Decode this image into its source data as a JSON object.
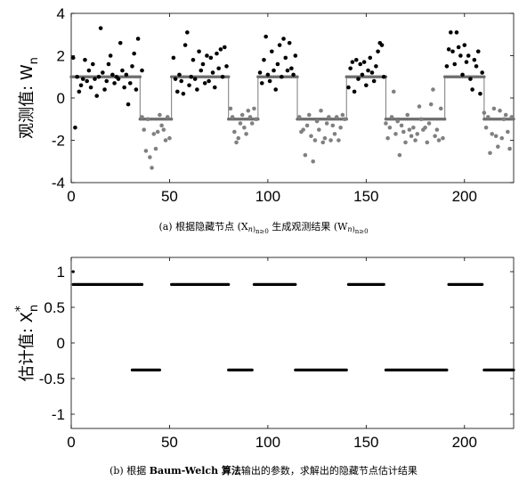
{
  "chart_data": [
    {
      "type": "scatter",
      "xlim": [
        0,
        225
      ],
      "ylim": [
        -4,
        4
      ],
      "xticks": [
        "0",
        "50",
        "100",
        "150",
        "200"
      ],
      "yticks": [
        "4",
        "2",
        "0",
        "-2",
        "-4"
      ],
      "xtick_values": [
        0,
        50,
        100,
        150,
        200
      ],
      "ytick_values": [
        4,
        2,
        0,
        -2,
        -4
      ],
      "ylabel": "观测值: W",
      "ylabel_sub": "n",
      "caption": "(a) 根据隐藏节点 (X_n)_{n≥0} 生成观测结果 (W_n)_{n≥0}",
      "hidden_state_segments": [
        {
          "x_start": 0,
          "x_end": 35,
          "level": 1
        },
        {
          "x_start": 35,
          "x_end": 51,
          "level": -1
        },
        {
          "x_start": 51,
          "x_end": 80,
          "level": 1
        },
        {
          "x_start": 80,
          "x_end": 95,
          "level": -1
        },
        {
          "x_start": 95,
          "x_end": 115,
          "level": 1
        },
        {
          "x_start": 115,
          "x_end": 140,
          "level": -1
        },
        {
          "x_start": 140,
          "x_end": 160,
          "level": 1
        },
        {
          "x_start": 160,
          "x_end": 190,
          "level": -1
        },
        {
          "x_start": 190,
          "x_end": 210,
          "level": 1
        },
        {
          "x_start": 210,
          "x_end": 225,
          "level": -1
        }
      ],
      "series": [
        {
          "color": "#000000",
          "points": [
            [
              1,
              1.9
            ],
            [
              2,
              -1.4
            ],
            [
              3,
              1.0
            ],
            [
              4,
              0.3
            ],
            [
              5,
              0.6
            ],
            [
              6,
              0.9
            ],
            [
              7,
              1.8
            ],
            [
              8,
              0.8
            ],
            [
              9,
              1.3
            ],
            [
              10,
              0.5
            ],
            [
              11,
              1.6
            ],
            [
              12,
              0.9
            ],
            [
              13,
              0.1
            ],
            [
              14,
              1.0
            ],
            [
              15,
              3.3
            ],
            [
              16,
              1.2
            ],
            [
              17,
              0.4
            ],
            [
              18,
              0.8
            ],
            [
              19,
              1.6
            ],
            [
              20,
              2.0
            ],
            [
              21,
              1.1
            ],
            [
              22,
              0.7
            ],
            [
              23,
              1.0
            ],
            [
              24,
              0.9
            ],
            [
              25,
              2.6
            ],
            [
              26,
              1.3
            ],
            [
              27,
              0.5
            ],
            [
              28,
              1.1
            ],
            [
              29,
              -0.3
            ],
            [
              30,
              0.7
            ],
            [
              31,
              1.5
            ],
            [
              32,
              2.1
            ],
            [
              33,
              0.4
            ],
            [
              34,
              2.8
            ],
            [
              36,
              1.3
            ],
            [
              52,
              1.9
            ],
            [
              53,
              0.9
            ],
            [
              54,
              0.3
            ],
            [
              55,
              1.1
            ],
            [
              56,
              0.8
            ],
            [
              57,
              0.2
            ],
            [
              58,
              2.5
            ],
            [
              59,
              3.1
            ],
            [
              60,
              0.6
            ],
            [
              61,
              1.0
            ],
            [
              62,
              1.8
            ],
            [
              63,
              0.9
            ],
            [
              64,
              0.4
            ],
            [
              65,
              2.2
            ],
            [
              66,
              1.3
            ],
            [
              67,
              1.6
            ],
            [
              68,
              0.7
            ],
            [
              69,
              2.0
            ],
            [
              70,
              0.8
            ],
            [
              71,
              1.9
            ],
            [
              72,
              1.2
            ],
            [
              73,
              0.5
            ],
            [
              74,
              2.1
            ],
            [
              75,
              1.4
            ],
            [
              76,
              2.3
            ],
            [
              77,
              1.0
            ],
            [
              78,
              2.4
            ],
            [
              79,
              1.5
            ],
            [
              96,
              1.2
            ],
            [
              97,
              0.7
            ],
            [
              98,
              1.8
            ],
            [
              99,
              2.9
            ],
            [
              100,
              1.1
            ],
            [
              101,
              0.8
            ],
            [
              102,
              2.2
            ],
            [
              103,
              1.3
            ],
            [
              104,
              0.4
            ],
            [
              105,
              1.6
            ],
            [
              106,
              2.5
            ],
            [
              107,
              1.0
            ],
            [
              108,
              2.8
            ],
            [
              109,
              1.9
            ],
            [
              110,
              1.3
            ],
            [
              111,
              2.6
            ],
            [
              112,
              1.4
            ],
            [
              113,
              1.1
            ],
            [
              114,
              2.0
            ],
            [
              141,
              0.5
            ],
            [
              142,
              1.4
            ],
            [
              143,
              1.7
            ],
            [
              144,
              0.3
            ],
            [
              145,
              1.8
            ],
            [
              146,
              0.9
            ],
            [
              147,
              1.6
            ],
            [
              148,
              1.1
            ],
            [
              149,
              1.7
            ],
            [
              150,
              0.6
            ],
            [
              151,
              1.3
            ],
            [
              152,
              1.9
            ],
            [
              153,
              1.2
            ],
            [
              154,
              0.8
            ],
            [
              155,
              1.5
            ],
            [
              156,
              2.2
            ],
            [
              157,
              2.6
            ],
            [
              158,
              2.5
            ],
            [
              159,
              1.0
            ],
            [
              191,
              1.5
            ],
            [
              192,
              2.3
            ],
            [
              193,
              3.1
            ],
            [
              194,
              2.2
            ],
            [
              195,
              1.6
            ],
            [
              196,
              3.1
            ],
            [
              197,
              2.4
            ],
            [
              198,
              2.0
            ],
            [
              199,
              1.1
            ],
            [
              200,
              2.5
            ],
            [
              201,
              1.7
            ],
            [
              202,
              2.0
            ],
            [
              203,
              0.9
            ],
            [
              204,
              0.4
            ],
            [
              205,
              1.8
            ],
            [
              206,
              1.5
            ],
            [
              207,
              2.2
            ],
            [
              208,
              0.2
            ],
            [
              209,
              1.2
            ]
          ]
        },
        {
          "color": "#808080",
          "points": [
            [
              36,
              -0.9
            ],
            [
              37,
              -1.5
            ],
            [
              38,
              -2.5
            ],
            [
              39,
              -1.0
            ],
            [
              40,
              -2.8
            ],
            [
              41,
              -3.3
            ],
            [
              42,
              -1.7
            ],
            [
              43,
              -2.4
            ],
            [
              44,
              -1.6
            ],
            [
              45,
              -0.8
            ],
            [
              46,
              -1.3
            ],
            [
              47,
              -1.5
            ],
            [
              48,
              -2.0
            ],
            [
              49,
              -0.9
            ],
            [
              50,
              -1.9
            ],
            [
              81,
              -0.5
            ],
            [
              82,
              -0.9
            ],
            [
              83,
              -1.6
            ],
            [
              84,
              -2.1
            ],
            [
              85,
              -1.9
            ],
            [
              86,
              -1.2
            ],
            [
              87,
              -0.8
            ],
            [
              88,
              -1.4
            ],
            [
              89,
              -1.7
            ],
            [
              90,
              -0.6
            ],
            [
              91,
              -0.9
            ],
            [
              92,
              -1.2
            ],
            [
              93,
              -0.5
            ],
            [
              94,
              -1.0
            ],
            [
              116,
              -0.9
            ],
            [
              117,
              -1.6
            ],
            [
              118,
              -1.5
            ],
            [
              119,
              -2.7
            ],
            [
              120,
              -1.3
            ],
            [
              121,
              -0.8
            ],
            [
              122,
              -1.8
            ],
            [
              123,
              -3.0
            ],
            [
              124,
              -2.0
            ],
            [
              125,
              -1.1
            ],
            [
              126,
              -1.5
            ],
            [
              127,
              -0.6
            ],
            [
              128,
              -2.1
            ],
            [
              129,
              -1.9
            ],
            [
              130,
              -1.2
            ],
            [
              131,
              -0.9
            ],
            [
              132,
              -2.0
            ],
            [
              133,
              -1.3
            ],
            [
              134,
              -1.7
            ],
            [
              135,
              -0.9
            ],
            [
              136,
              -2.0
            ],
            [
              137,
              -1.4
            ],
            [
              138,
              -0.8
            ],
            [
              139,
              -1.0
            ],
            [
              160,
              -1.2
            ],
            [
              161,
              -1.9
            ],
            [
              162,
              -1.4
            ],
            [
              163,
              -0.9
            ],
            [
              164,
              0.3
            ],
            [
              165,
              -1.7
            ],
            [
              166,
              -1.1
            ],
            [
              167,
              -2.7
            ],
            [
              168,
              -1.3
            ],
            [
              169,
              -1.6
            ],
            [
              170,
              -2.1
            ],
            [
              171,
              -0.8
            ],
            [
              172,
              -1.5
            ],
            [
              173,
              -1.8
            ],
            [
              174,
              -1.4
            ],
            [
              175,
              -2.0
            ],
            [
              176,
              -1.7
            ],
            [
              177,
              -0.4
            ],
            [
              178,
              -1.0
            ],
            [
              179,
              -1.5
            ],
            [
              180,
              -1.4
            ],
            [
              181,
              -2.1
            ],
            [
              182,
              -1.2
            ],
            [
              183,
              -0.3
            ],
            [
              184,
              0.4
            ],
            [
              185,
              -1.8
            ],
            [
              186,
              -1.5
            ],
            [
              187,
              -2.0
            ],
            [
              188,
              -0.5
            ],
            [
              189,
              -1.9
            ],
            [
              210,
              -0.7
            ],
            [
              211,
              -1.4
            ],
            [
              212,
              -0.9
            ],
            [
              213,
              -2.6
            ],
            [
              214,
              -1.7
            ],
            [
              215,
              -0.5
            ],
            [
              216,
              -1.8
            ],
            [
              217,
              -2.3
            ],
            [
              218,
              -0.6
            ],
            [
              219,
              -1.9
            ],
            [
              220,
              -1.0
            ],
            [
              221,
              -0.8
            ],
            [
              222,
              -1.6
            ],
            [
              223,
              -2.4
            ],
            [
              224,
              -0.9
            ]
          ]
        }
      ]
    },
    {
      "type": "scatter",
      "xlim": [
        0,
        225
      ],
      "ylim": [
        -1.2,
        1.2
      ],
      "xticks": [
        "0",
        "50",
        "100",
        "150",
        "200"
      ],
      "yticks": [
        "1",
        "0.5",
        "0",
        "-0.5",
        "-1"
      ],
      "xtick_values": [
        0,
        50,
        100,
        150,
        200
      ],
      "ytick_values": [
        1,
        0.5,
        0,
        -0.5,
        -1
      ],
      "ylabel": "估计值: X",
      "ylabel_sup": "*",
      "ylabel_sub": "n",
      "caption": "(b) 根据 Baum-Welch 算法输出的参数，求解出的隐藏节点估计结果",
      "caption_bold": "Baum-Welch 算法",
      "estimate_segments": [
        {
          "x_start": 1,
          "x_end": 36,
          "level": 0.82
        },
        {
          "x_start": 31,
          "x_end": 45,
          "level": -0.38
        },
        {
          "x_start": 51,
          "x_end": 80,
          "level": 0.82
        },
        {
          "x_start": 80,
          "x_end": 92,
          "level": -0.38
        },
        {
          "x_start": 93,
          "x_end": 114,
          "level": 0.82
        },
        {
          "x_start": 114,
          "x_end": 140,
          "level": -0.38
        },
        {
          "x_start": 141,
          "x_end": 159,
          "level": 0.82
        },
        {
          "x_start": 160,
          "x_end": 191,
          "level": -0.38
        },
        {
          "x_start": 192,
          "x_end": 209,
          "level": 0.82
        },
        {
          "x_start": 210,
          "x_end": 225,
          "level": -0.38
        }
      ],
      "extra_points": [
        [
          1,
          1.0
        ]
      ]
    }
  ]
}
